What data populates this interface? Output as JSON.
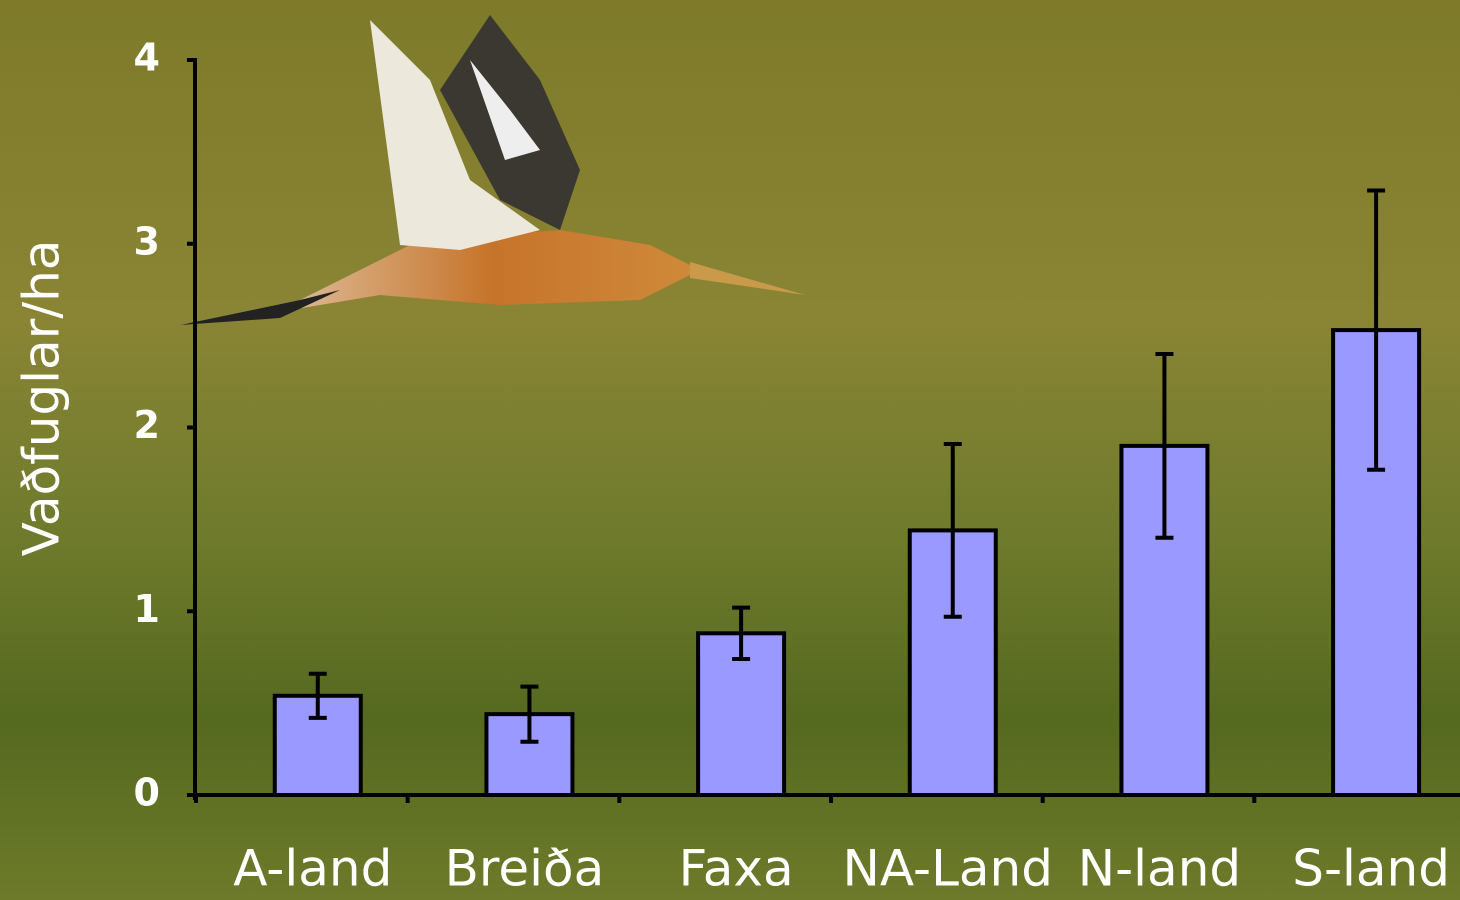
{
  "chart_data": {
    "type": "bar",
    "y_label": "Vaðfuglar/ha",
    "categories": [
      "A-land",
      "Breiða",
      "Faxa",
      "NA-Land",
      "N-land",
      "S-land"
    ],
    "values": [
      0.54,
      0.44,
      0.88,
      1.44,
      1.9,
      2.53
    ],
    "errors": [
      0.12,
      0.15,
      0.14,
      0.47,
      0.5,
      0.76
    ],
    "color": "#9999ff",
    "ylim": [
      0,
      4
    ],
    "yticks": [
      0,
      1,
      2,
      3,
      4
    ]
  }
}
